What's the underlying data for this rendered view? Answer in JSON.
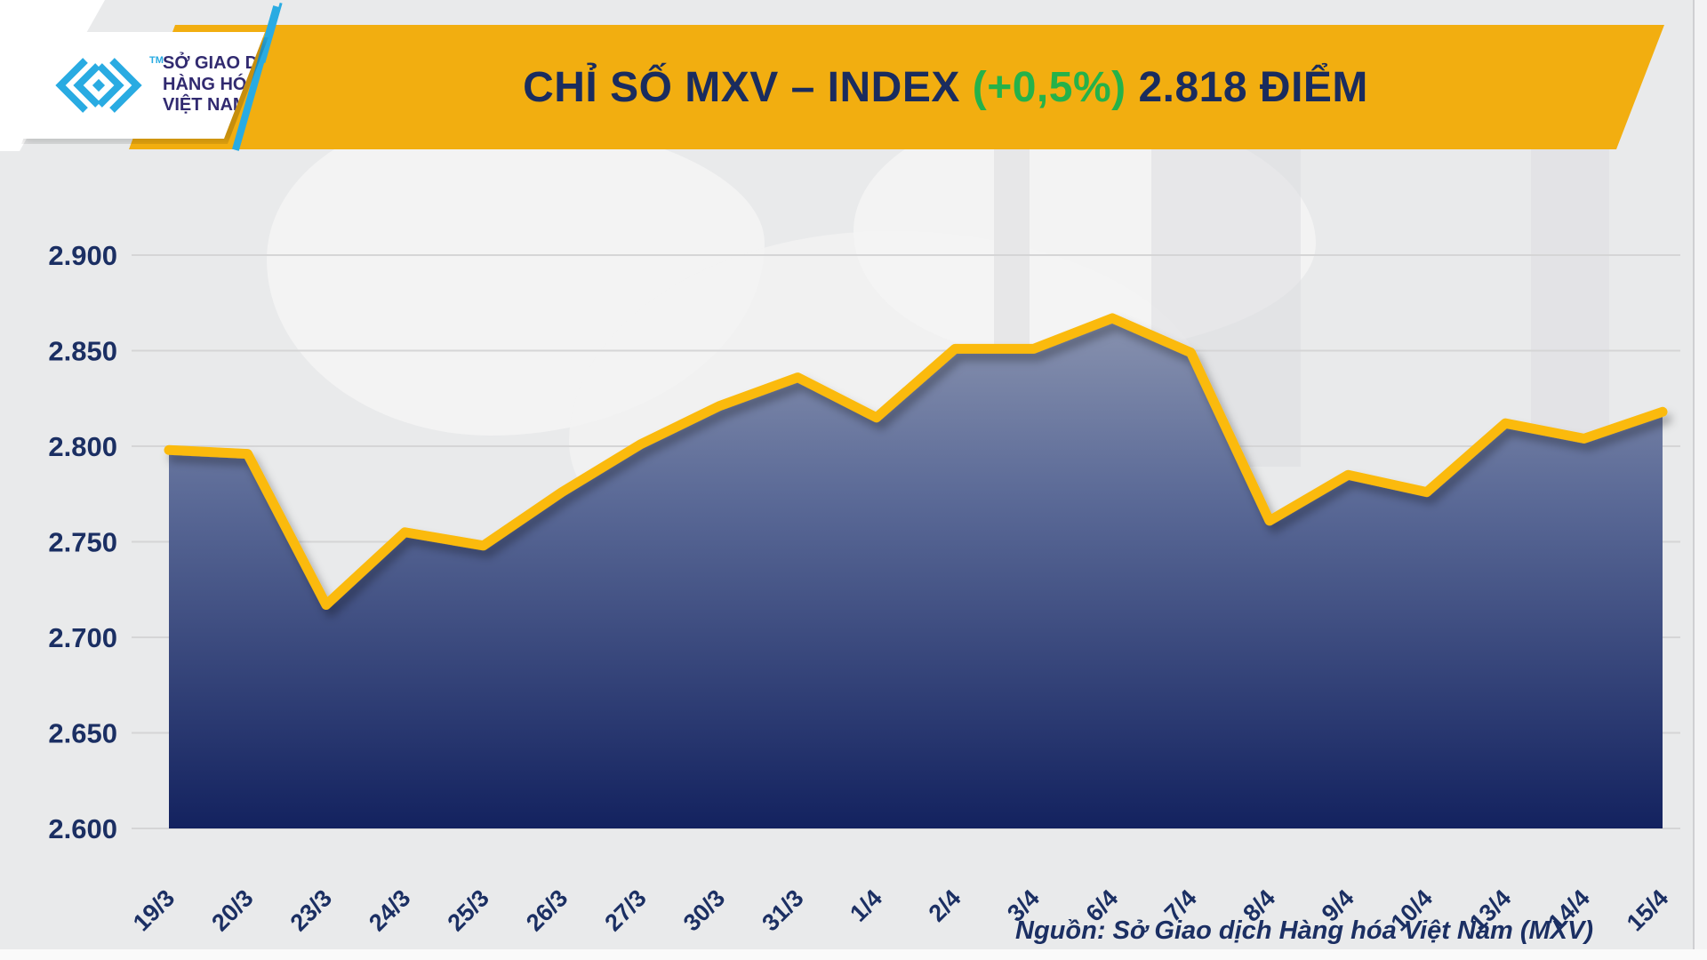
{
  "header": {
    "logo": {
      "line1": "SỞ GIAO DỊCH",
      "line2": "HÀNG HÓA",
      "line3": "VIỆT NAM",
      "trademark": "TM",
      "brand_cyan": "#29abe2",
      "brand_navy": "#312a70"
    },
    "banner_color": "#f2ae10",
    "title_main": "CHỈ SỐ MXV – INDEX",
    "title_change": "(+0,5%)",
    "title_value": "2.818 ĐIỂM",
    "title_navy": "#1a2c5e",
    "title_green": "#25b24a"
  },
  "chart_data": {
    "type": "area",
    "title": "CHỈ SỐ MXV – INDEX (+0,5%) 2.818 ĐIỂM",
    "categories": [
      "19/3",
      "20/3",
      "23/3",
      "24/3",
      "25/3",
      "26/3",
      "27/3",
      "30/3",
      "31/3",
      "1/4",
      "2/4",
      "3/4",
      "6/4",
      "7/4",
      "8/4",
      "9/4",
      "10/4",
      "13/4",
      "14/4",
      "15/4"
    ],
    "values": [
      2798,
      2796,
      2717,
      2755,
      2748,
      2776,
      2801,
      2821,
      2836,
      2815,
      2851,
      2851,
      2867,
      2849,
      2761,
      2785,
      2776,
      2812,
      2804,
      2818
    ],
    "xlabel": "",
    "ylabel": "",
    "axis": {
      "y_range": [
        2600,
        2900
      ],
      "y_ticks": [
        {
          "value": 2600,
          "label": "2.600"
        },
        {
          "value": 2650,
          "label": "2.650"
        },
        {
          "value": 2700,
          "label": "2.700"
        },
        {
          "value": 2750,
          "label": "2.750"
        },
        {
          "value": 2800,
          "label": "2.800"
        },
        {
          "value": 2850,
          "label": "2.850"
        },
        {
          "value": 2900,
          "label": "2.900"
        }
      ]
    },
    "grid": "horizontal",
    "legend": "none",
    "line_color": "#fbba08",
    "area_gradient_top": "#8892af",
    "area_gradient_mid": "#5b6a97",
    "area_gradient_bottom": "#13225f",
    "last_point_label": "2.818",
    "change_percent": "+0,5%"
  },
  "footer": {
    "source": "Nguồn: Sở Giao dịch Hàng hóa Việt Nam (MXV)"
  }
}
